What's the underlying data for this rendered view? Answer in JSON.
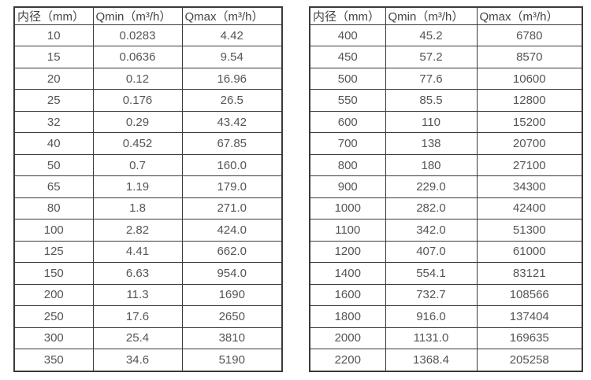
{
  "colors": {
    "background": "#ffffff",
    "border": "#3a3a3a",
    "header_text": "#444444",
    "cell_text": "#555555"
  },
  "chart_data": [
    {
      "type": "table",
      "columns": [
        "内径（mm）",
        "Qmin（m³/h）",
        "Qmax（m³/h）"
      ],
      "rows": [
        [
          "10",
          "0.0283",
          "4.42"
        ],
        [
          "15",
          "0.0636",
          "9.54"
        ],
        [
          "20",
          "0.12",
          "16.96"
        ],
        [
          "25",
          "0.176",
          "26.5"
        ],
        [
          "32",
          "0.29",
          "43.42"
        ],
        [
          "40",
          "0.452",
          "67.85"
        ],
        [
          "50",
          "0.7",
          "160.0"
        ],
        [
          "65",
          "1.19",
          "179.0"
        ],
        [
          "80",
          "1.8",
          "271.0"
        ],
        [
          "100",
          "2.82",
          "424.0"
        ],
        [
          "125",
          "4.41",
          "662.0"
        ],
        [
          "150",
          "6.63",
          "954.0"
        ],
        [
          "200",
          "11.3",
          "1690"
        ],
        [
          "250",
          "17.6",
          "2650"
        ],
        [
          "300",
          "25.4",
          "3810"
        ],
        [
          "350",
          "34.6",
          "5190"
        ]
      ]
    },
    {
      "type": "table",
      "columns": [
        "内径（mm）",
        "Qmin（m³/h）",
        "Qmax（m³/h）"
      ],
      "rows": [
        [
          "400",
          "45.2",
          "6780"
        ],
        [
          "450",
          "57.2",
          "8570"
        ],
        [
          "500",
          "77.6",
          "10600"
        ],
        [
          "550",
          "85.5",
          "12800"
        ],
        [
          "600",
          "110",
          "15200"
        ],
        [
          "700",
          "138",
          "20700"
        ],
        [
          "800",
          "180",
          "27100"
        ],
        [
          "900",
          "229.0",
          "34300"
        ],
        [
          "1000",
          "282.0",
          "42400"
        ],
        [
          "1100",
          "342.0",
          "51300"
        ],
        [
          "1200",
          "407.0",
          "61000"
        ],
        [
          "1400",
          "554.1",
          "83121"
        ],
        [
          "1600",
          "732.7",
          "108566"
        ],
        [
          "1800",
          "916.0",
          "137404"
        ],
        [
          "2000",
          "1131.0",
          "169635"
        ],
        [
          "2200",
          "1368.4",
          "205258"
        ]
      ]
    }
  ]
}
